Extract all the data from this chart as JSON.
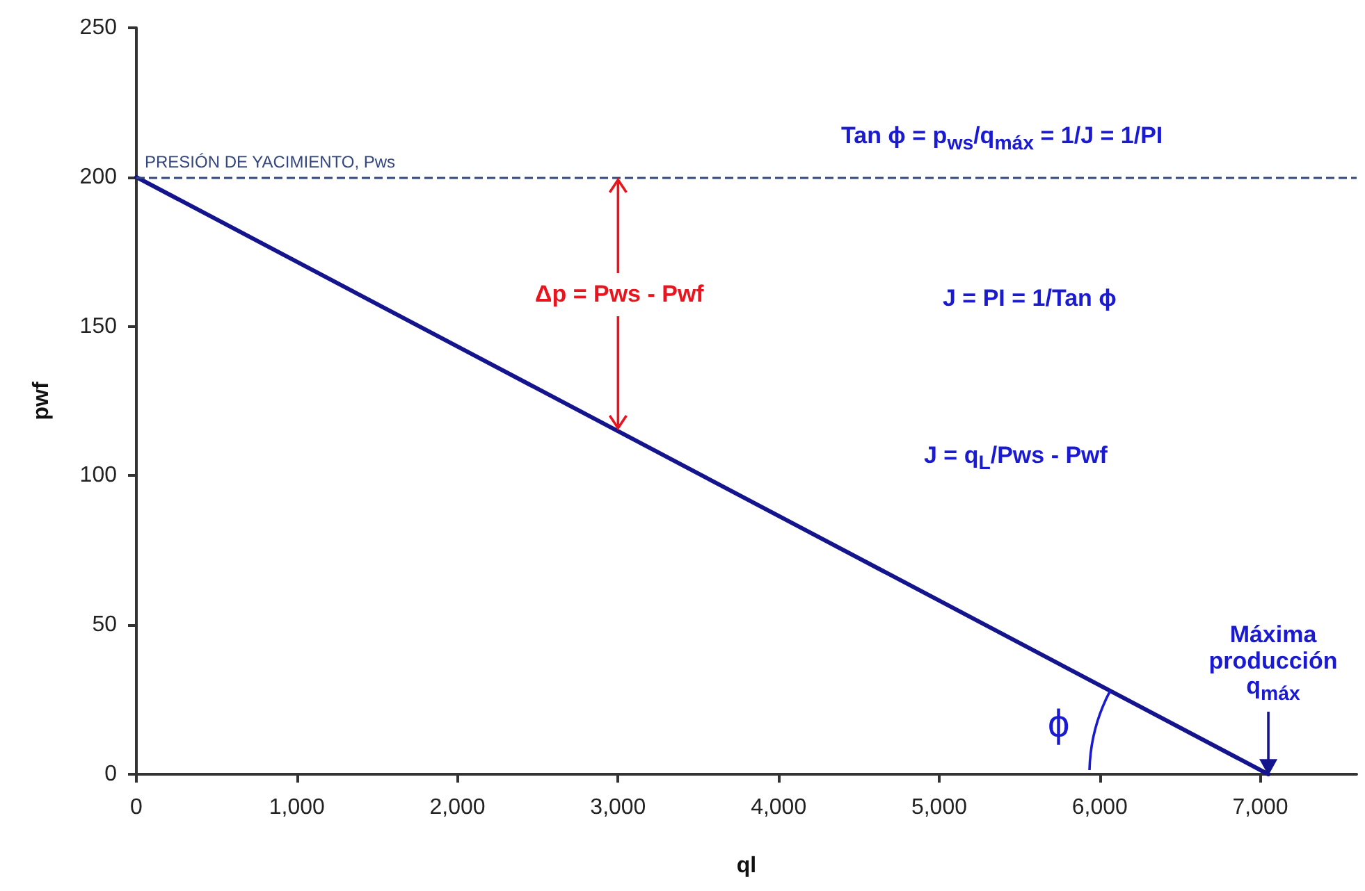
{
  "chart_data": {
    "type": "line",
    "xlabel": "ql",
    "ylabel": "pwf",
    "x": [
      0,
      7050
    ],
    "series": [
      {
        "color": "#14148c",
        "values": [
          200,
          0
        ]
      }
    ],
    "xlim": [
      0,
      7600
    ],
    "ylim": [
      0,
      250
    ],
    "xticks": [
      {
        "value": 0,
        "label": "0"
      },
      {
        "value": 1000,
        "label": "1,000"
      },
      {
        "value": 2000,
        "label": "2,000"
      },
      {
        "value": 3000,
        "label": "3,000"
      },
      {
        "value": 4000,
        "label": "4,000"
      },
      {
        "value": 5000,
        "label": "5,000"
      },
      {
        "value": 6000,
        "label": "6,000"
      },
      {
        "value": 7000,
        "label": "7,000"
      }
    ],
    "yticks": [
      0,
      50,
      100,
      150,
      200,
      250
    ],
    "marker": "none",
    "line_style": "solid",
    "grid": false,
    "ref_lines": [
      {
        "axis": "y",
        "value": 200,
        "label": "PRESIÓN DE YACIMIENTO, Pws",
        "color": "#34467f",
        "line_style": "dashed"
      }
    ],
    "annotations": [
      "Tan ϕ = p$_{ws}$/q$_{máx}$ = 1/J = 1/PI",
      "J = PI = 1/Tan ϕ",
      "J = q$_{L}$/Pws - Pwf",
      {
        "text": "Δp = Pws - Pwf",
        "x": 3000,
        "y": 115
      },
      {
        "text": "Máxima producción q$_{máx}$",
        "x": 7050,
        "y": 0
      },
      "ϕ"
    ]
  }
}
